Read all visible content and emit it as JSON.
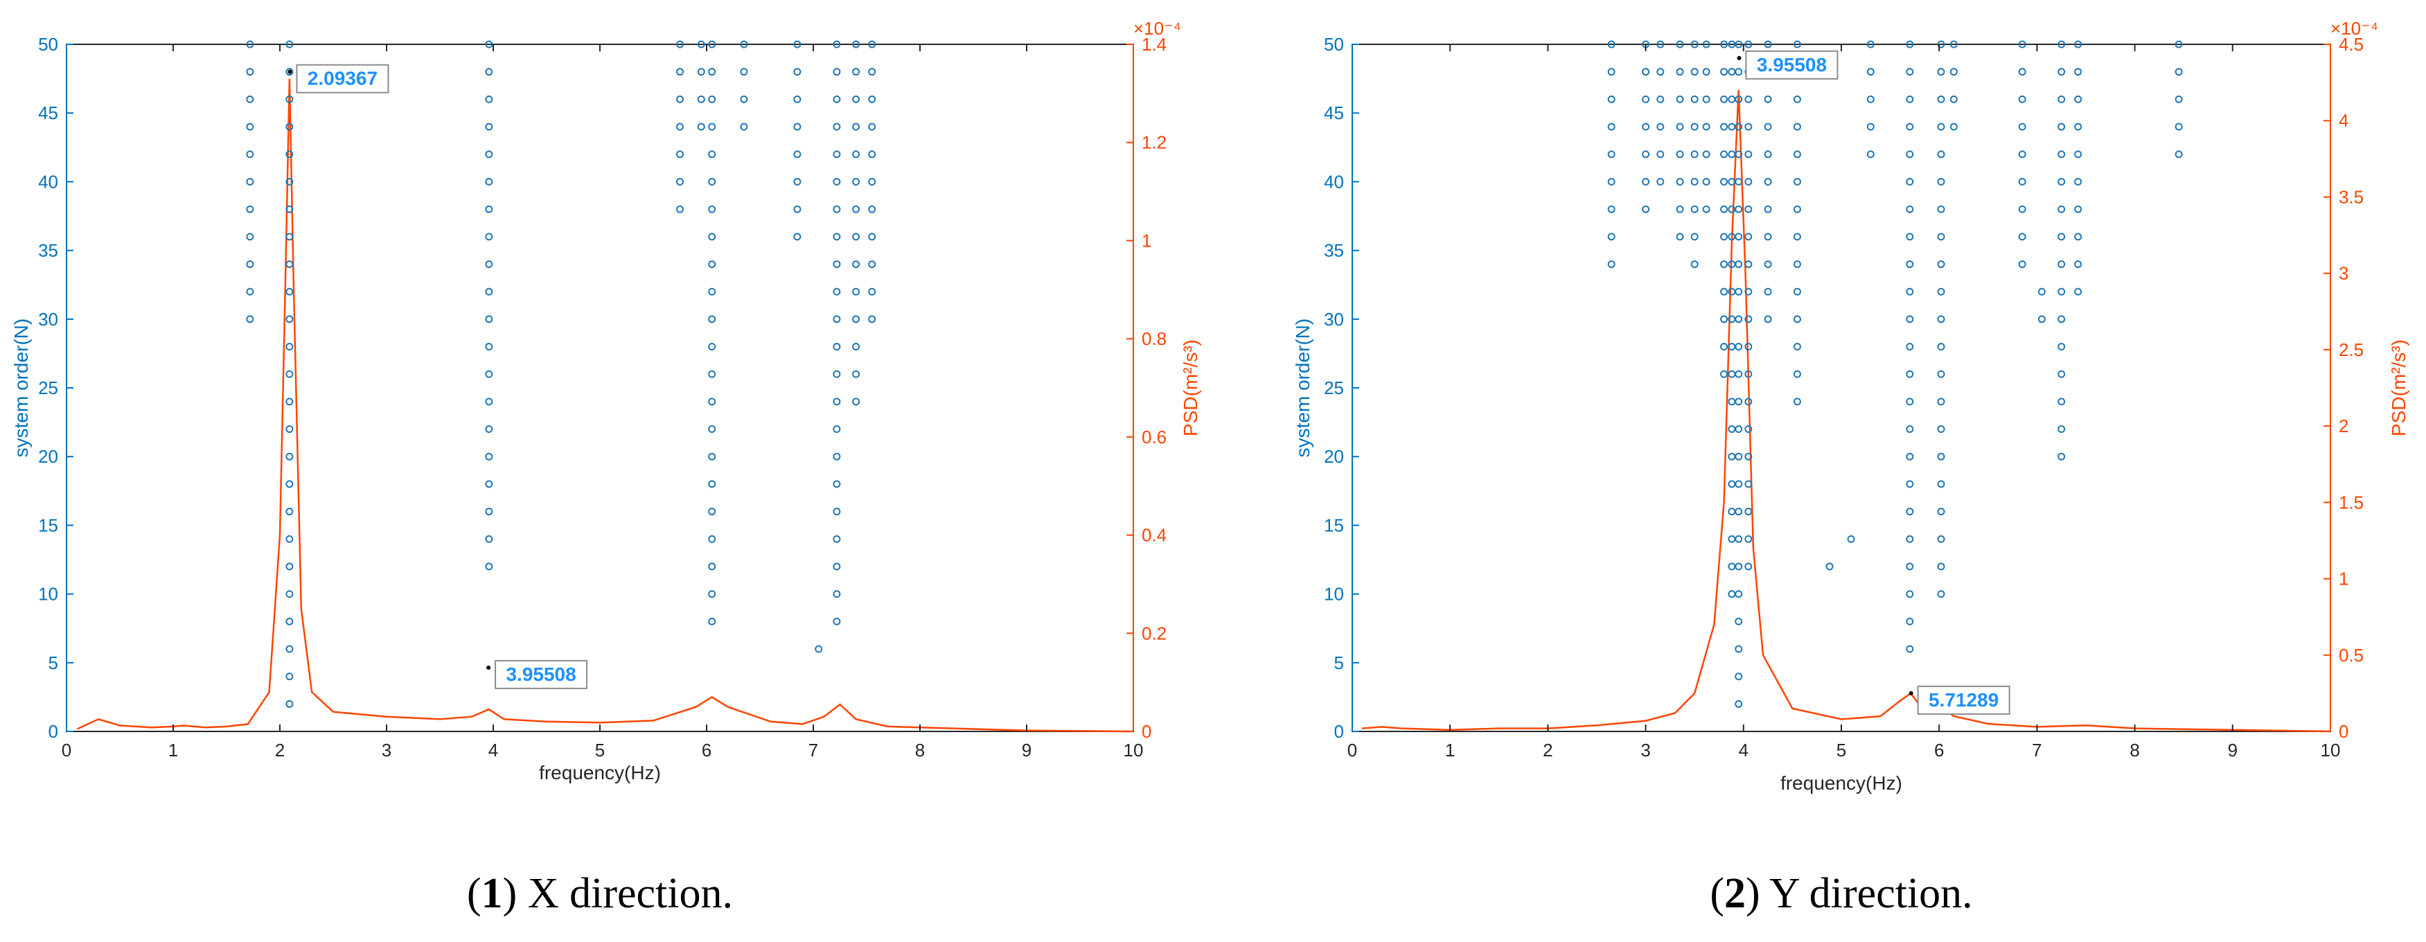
{
  "chart_data": [
    {
      "type": "scatter",
      "caption_number": "1",
      "caption_text": " X direction.",
      "xlabel": "frequency(Hz)",
      "ylabel_left": "system order(N)",
      "ylabel_right": "PSD(m²/s³)",
      "right_exponent": "×10⁻⁴",
      "xlim": [
        0,
        10
      ],
      "ylim_left": [
        0,
        50
      ],
      "ylim_right": [
        0,
        1.4
      ],
      "x_ticks": [
        "0",
        "1",
        "2",
        "3",
        "4",
        "5",
        "6",
        "7",
        "8",
        "9",
        "10"
      ],
      "y_left_ticks": [
        "0",
        "5",
        "10",
        "15",
        "20",
        "25",
        "30",
        "35",
        "40",
        "45",
        "50"
      ],
      "y_right_ticks": [
        "0",
        "0.2",
        "0.4",
        "0.6",
        "0.8",
        "1",
        "1.2",
        "1.4"
      ],
      "colors": {
        "points": "#1f77b4",
        "psd": "#ff4500",
        "axis_left": "#0072bd",
        "axis_right": "#ff4500",
        "label_text": "#1e90ff"
      },
      "stabilization_points": [
        {
          "x": 1.72,
          "orders": [
            30,
            32,
            34,
            36,
            38,
            40,
            42,
            44,
            46,
            48,
            50
          ]
        },
        {
          "x": 2.09,
          "orders": [
            2,
            4,
            6,
            8,
            10,
            12,
            14,
            16,
            18,
            20,
            22,
            24,
            26,
            28,
            30,
            32,
            34,
            36,
            38,
            40,
            42,
            44,
            46,
            48,
            50
          ]
        },
        {
          "x": 3.96,
          "orders": [
            12,
            14,
            16,
            18,
            20,
            22,
            24,
            26,
            28,
            30,
            32,
            34,
            36,
            38,
            40,
            42,
            44,
            46,
            48,
            50
          ]
        },
        {
          "x": 5.75,
          "orders": [
            38,
            40,
            42,
            44,
            46,
            48,
            50
          ]
        },
        {
          "x": 5.95,
          "orders": [
            44,
            46,
            48,
            50
          ]
        },
        {
          "x": 6.05,
          "orders": [
            8,
            10,
            12,
            14,
            16,
            18,
            20,
            22,
            24,
            26,
            28,
            30,
            32,
            34,
            36,
            38,
            40,
            42,
            44,
            46,
            48,
            50
          ]
        },
        {
          "x": 6.35,
          "orders": [
            44,
            46,
            48,
            50
          ]
        },
        {
          "x": 6.85,
          "orders": [
            36,
            38,
            40,
            42,
            44,
            46,
            48,
            50
          ]
        },
        {
          "x": 7.05,
          "orders": [
            6
          ]
        },
        {
          "x": 7.22,
          "orders": [
            8,
            10,
            12,
            14,
            16,
            18,
            20,
            22,
            24,
            26,
            28,
            30,
            32,
            34,
            36,
            38,
            40,
            42,
            44,
            46,
            48,
            50
          ]
        },
        {
          "x": 7.4,
          "orders": [
            24,
            26,
            28,
            30,
            32,
            34,
            36,
            38,
            40,
            42,
            44,
            46,
            48,
            50
          ]
        },
        {
          "x": 7.55,
          "orders": [
            30,
            32,
            34,
            36,
            38,
            40,
            42,
            44,
            46,
            48,
            50
          ]
        }
      ],
      "psd_curve": [
        [
          0.1,
          0.05
        ],
        [
          0.3,
          0.25
        ],
        [
          0.5,
          0.12
        ],
        [
          0.8,
          0.08
        ],
        [
          1.0,
          0.1
        ],
        [
          1.1,
          0.12
        ],
        [
          1.3,
          0.08
        ],
        [
          1.5,
          0.1
        ],
        [
          1.7,
          0.15
        ],
        [
          1.9,
          0.8
        ],
        [
          2.0,
          4.0
        ],
        [
          2.05,
          9.0
        ],
        [
          2.09,
          13.3
        ],
        [
          2.13,
          9.0
        ],
        [
          2.2,
          2.5
        ],
        [
          2.3,
          0.8
        ],
        [
          2.5,
          0.4
        ],
        [
          3.0,
          0.3
        ],
        [
          3.5,
          0.25
        ],
        [
          3.8,
          0.3
        ],
        [
          3.96,
          0.45
        ],
        [
          4.1,
          0.25
        ],
        [
          4.5,
          0.2
        ],
        [
          5.0,
          0.18
        ],
        [
          5.5,
          0.22
        ],
        [
          5.9,
          0.5
        ],
        [
          6.05,
          0.7
        ],
        [
          6.2,
          0.5
        ],
        [
          6.6,
          0.2
        ],
        [
          6.9,
          0.15
        ],
        [
          7.1,
          0.3
        ],
        [
          7.25,
          0.55
        ],
        [
          7.4,
          0.25
        ],
        [
          7.7,
          0.1
        ],
        [
          8.0,
          0.08
        ],
        [
          8.5,
          0.05
        ],
        [
          9.0,
          0.02
        ],
        [
          10.0,
          0.0
        ]
      ],
      "annotations": [
        {
          "label": "2.09367",
          "x": 2.09367,
          "y": 48
        },
        {
          "label": "3.95508",
          "x": 3.95508,
          "y": 1.3
        }
      ]
    },
    {
      "type": "scatter",
      "caption_number": "2",
      "caption_text": " Y direction.",
      "xlabel": "frequency(Hz)",
      "ylabel_left": "system order(N)",
      "ylabel_right": "PSD(m²/s³)",
      "right_exponent": "×10⁻⁴",
      "xlim": [
        0,
        10
      ],
      "ylim_left": [
        0,
        50
      ],
      "ylim_right": [
        0,
        4.5
      ],
      "x_ticks": [
        "0",
        "1",
        "2",
        "3",
        "4",
        "5",
        "6",
        "7",
        "8",
        "9",
        "10"
      ],
      "y_left_ticks": [
        "0",
        "5",
        "10",
        "15",
        "20",
        "25",
        "30",
        "35",
        "40",
        "45",
        "50"
      ],
      "y_right_ticks": [
        "0",
        "0.5",
        "1",
        "1.5",
        "2",
        "2.5",
        "3",
        "3.5",
        "4",
        "4.5"
      ],
      "colors": {
        "points": "#1f77b4",
        "psd": "#ff4500",
        "axis_left": "#0072bd",
        "axis_right": "#ff4500",
        "label_text": "#1e90ff"
      },
      "stabilization_points": [
        {
          "x": 2.65,
          "orders": [
            34,
            36,
            38,
            40,
            42,
            44,
            46,
            48,
            50
          ]
        },
        {
          "x": 3.0,
          "orders": [
            38,
            40,
            42,
            44,
            46,
            48,
            50
          ]
        },
        {
          "x": 3.15,
          "orders": [
            40,
            42,
            44,
            46,
            48,
            50
          ]
        },
        {
          "x": 3.35,
          "orders": [
            36,
            38,
            40,
            42,
            44,
            46,
            48,
            50
          ]
        },
        {
          "x": 3.5,
          "orders": [
            34,
            36,
            38,
            40,
            42,
            44,
            46,
            48,
            50
          ]
        },
        {
          "x": 3.62,
          "orders": [
            38,
            40,
            42,
            44,
            46,
            48,
            50
          ]
        },
        {
          "x": 3.8,
          "orders": [
            26,
            28,
            30,
            32,
            34,
            36,
            38,
            40,
            42,
            44,
            46,
            48,
            50
          ]
        },
        {
          "x": 3.88,
          "orders": [
            10,
            12,
            14,
            16,
            18,
            20,
            22,
            24,
            26,
            28,
            30,
            32,
            34,
            36,
            38,
            40,
            42,
            44,
            46,
            48,
            50
          ]
        },
        {
          "x": 3.95,
          "orders": [
            2,
            4,
            6,
            8,
            10,
            12,
            14,
            16,
            18,
            20,
            22,
            24,
            26,
            28,
            30,
            32,
            34,
            36,
            38,
            40,
            42,
            44,
            46,
            48,
            50
          ]
        },
        {
          "x": 4.05,
          "orders": [
            12,
            14,
            16,
            18,
            20,
            22,
            24,
            26,
            28,
            30,
            32,
            34,
            36,
            38,
            40,
            42,
            44,
            46,
            48,
            50
          ]
        },
        {
          "x": 4.25,
          "orders": [
            30,
            32,
            34,
            36,
            38,
            40,
            42,
            44,
            46,
            48,
            50
          ]
        },
        {
          "x": 4.55,
          "orders": [
            24,
            26,
            28,
            30,
            32,
            34,
            36,
            38,
            40,
            42,
            44,
            46,
            48,
            50
          ]
        },
        {
          "x": 4.88,
          "orders": [
            12
          ]
        },
        {
          "x": 5.1,
          "orders": [
            14
          ]
        },
        {
          "x": 5.3,
          "orders": [
            42,
            44,
            46,
            48,
            50
          ]
        },
        {
          "x": 5.7,
          "orders": [
            6,
            8,
            10,
            12,
            14,
            16,
            18,
            20,
            22,
            24,
            26,
            28,
            30,
            32,
            34,
            36,
            38,
            40,
            42,
            44,
            46,
            48,
            50
          ]
        },
        {
          "x": 6.02,
          "orders": [
            10,
            12,
            14,
            16,
            18,
            20,
            22,
            24,
            26,
            28,
            30,
            32,
            34,
            36,
            38,
            40,
            42,
            44,
            46,
            48,
            50
          ]
        },
        {
          "x": 6.15,
          "orders": [
            44,
            46,
            48,
            50
          ]
        },
        {
          "x": 6.85,
          "orders": [
            34,
            36,
            38,
            40,
            42,
            44,
            46,
            48,
            50
          ]
        },
        {
          "x": 7.05,
          "orders": [
            30,
            32
          ]
        },
        {
          "x": 7.25,
          "orders": [
            20,
            22,
            24,
            26,
            28,
            30,
            32,
            34,
            36,
            38,
            40,
            42,
            44,
            46,
            48,
            50
          ]
        },
        {
          "x": 7.42,
          "orders": [
            32,
            34,
            36,
            38,
            40,
            42,
            44,
            46,
            48,
            50
          ]
        },
        {
          "x": 8.45,
          "orders": [
            42,
            44,
            46,
            48,
            50
          ]
        }
      ],
      "psd_curve": [
        [
          0.1,
          0.02
        ],
        [
          0.3,
          0.03
        ],
        [
          0.5,
          0.02
        ],
        [
          1.0,
          0.01
        ],
        [
          1.5,
          0.02
        ],
        [
          2.0,
          0.02
        ],
        [
          2.5,
          0.04
        ],
        [
          3.0,
          0.07
        ],
        [
          3.3,
          0.12
        ],
        [
          3.5,
          0.25
        ],
        [
          3.7,
          0.7
        ],
        [
          3.8,
          1.5
        ],
        [
          3.88,
          3.2
        ],
        [
          3.95,
          4.2
        ],
        [
          4.02,
          3.0
        ],
        [
          4.1,
          1.2
        ],
        [
          4.2,
          0.5
        ],
        [
          4.5,
          0.15
        ],
        [
          5.0,
          0.08
        ],
        [
          5.4,
          0.1
        ],
        [
          5.6,
          0.2
        ],
        [
          5.71,
          0.25
        ],
        [
          5.85,
          0.13
        ],
        [
          6.0,
          0.17
        ],
        [
          6.15,
          0.1
        ],
        [
          6.5,
          0.05
        ],
        [
          7.0,
          0.03
        ],
        [
          7.5,
          0.04
        ],
        [
          8.0,
          0.02
        ],
        [
          9.0,
          0.01
        ],
        [
          10.0,
          0.0
        ]
      ],
      "annotations": [
        {
          "label": "3.95508",
          "x": 3.95508,
          "y": 49
        },
        {
          "label": "5.71289",
          "x": 5.71289,
          "y": 2.5
        }
      ]
    }
  ]
}
